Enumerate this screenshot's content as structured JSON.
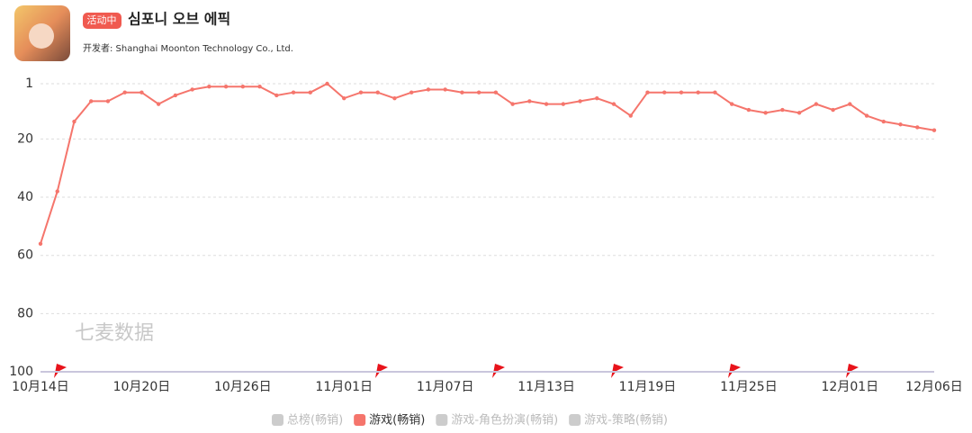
{
  "header": {
    "badge": "活动中",
    "title": "심포니 오브 에픽",
    "developer": "开发者: Shanghai Moonton Technology Co., Ltd."
  },
  "watermark": "七麦数据",
  "chart_data": {
    "type": "line",
    "categories": [
      "10月14日",
      null,
      null,
      null,
      null,
      null,
      "10月20日",
      null,
      null,
      null,
      null,
      null,
      "10月26日",
      null,
      null,
      null,
      null,
      null,
      "11月01日",
      null,
      null,
      null,
      null,
      null,
      "11月07日",
      null,
      null,
      null,
      null,
      null,
      "11月13日",
      null,
      null,
      null,
      null,
      null,
      "11月19日",
      null,
      null,
      null,
      null,
      null,
      "11月25日",
      null,
      null,
      null,
      null,
      null,
      "12月01日",
      null,
      null,
      null,
      null,
      "12月06日"
    ],
    "series": [
      {
        "name": "游戏(畅销)",
        "color": "#f5756c",
        "values": [
          56,
          38,
          14,
          7,
          7,
          4,
          4,
          8,
          5,
          3,
          2,
          2,
          2,
          2,
          5,
          4,
          4,
          1,
          6,
          4,
          4,
          6,
          4,
          3,
          3,
          4,
          4,
          4,
          8,
          7,
          8,
          8,
          7,
          6,
          8,
          12,
          4,
          4,
          4,
          4,
          4,
          8,
          10,
          11,
          10,
          11,
          8,
          10,
          8,
          12,
          14,
          15,
          16,
          17
        ]
      }
    ],
    "inactive_legend": {
      "names": [
        "总榜(畅销)",
        "游戏-角色扮演(畅销)",
        "游戏-策略(畅销)"
      ],
      "color": "#cccccc"
    },
    "ylim": [
      100,
      1
    ],
    "yticks": [
      1,
      20,
      40,
      60,
      80,
      100
    ],
    "grid": true
  }
}
